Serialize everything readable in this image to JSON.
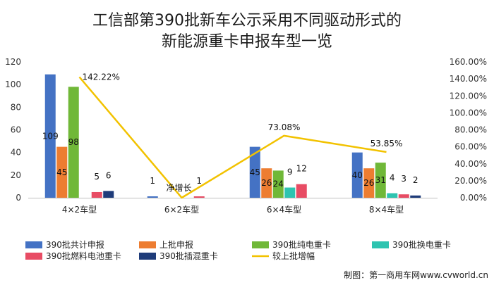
{
  "chart_data": {
    "type": "bar",
    "title_line1": "工信部第390批新车公示采用不同驱动形式的",
    "title_line2": "新能源重卡申报车型一览",
    "categories": [
      "4×2车型",
      "6×2车型",
      "6×4车型",
      "8×4车型"
    ],
    "ylim": [
      0,
      120
    ],
    "yticks": [
      "0",
      "20",
      "40",
      "60",
      "80",
      "100",
      "120"
    ],
    "y2lim": [
      0,
      160
    ],
    "y2ticks": [
      "0.00%",
      "20.00%",
      "40.00%",
      "60.00%",
      "80.00%",
      "100.00%",
      "120.00%",
      "140.00%",
      "160.00%"
    ],
    "series": [
      {
        "name": "390批共计申报",
        "color": "#4472C4",
        "values": [
          109,
          1,
          45,
          40
        ],
        "labels": [
          "109",
          "1",
          "45",
          "40"
        ]
      },
      {
        "name": "上批申报",
        "color": "#ED7D31",
        "values": [
          45,
          0,
          26,
          26
        ],
        "labels": [
          "45",
          "",
          "26",
          "26"
        ]
      },
      {
        "name": "390批纯电重卡",
        "color": "#70B838",
        "values": [
          98,
          0,
          24,
          31
        ],
        "labels": [
          "98",
          "",
          "24",
          "31"
        ]
      },
      {
        "name": "390批换电重卡",
        "color": "#2EC4B0",
        "values": [
          0,
          0,
          9,
          4
        ],
        "labels": [
          "",
          "",
          "9",
          "4"
        ]
      },
      {
        "name": "390批燃料电池重卡",
        "color": "#E84C64",
        "values": [
          5,
          1,
          12,
          3
        ],
        "labels": [
          "5",
          "1",
          "12",
          "3"
        ]
      },
      {
        "name": "390批插混重卡",
        "color": "#1F3C7A",
        "values": [
          6,
          0,
          0,
          2
        ],
        "labels": [
          "6",
          "",
          "",
          "2"
        ]
      }
    ],
    "line": {
      "name": "较上批增幅",
      "color": "#F2C200",
      "values": [
        142.22,
        0,
        73.08,
        53.85
      ],
      "labels": [
        "142.22%",
        "净增长",
        "73.08%",
        "53.85%"
      ]
    }
  },
  "credit": "制图：第一商用车网www.cvworld.cn"
}
